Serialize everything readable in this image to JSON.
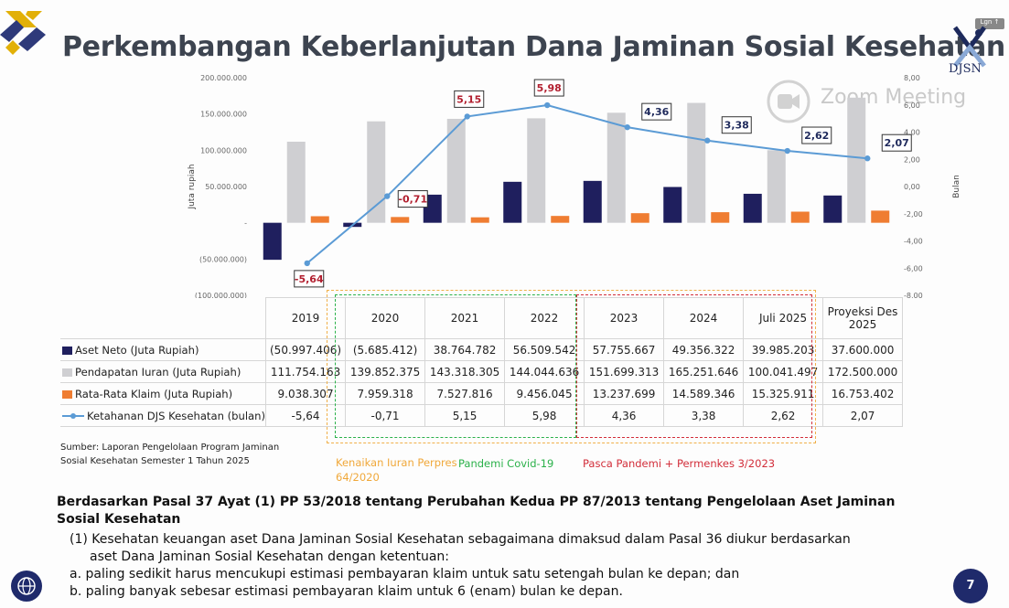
{
  "title": "Perkembangan Keberlanjutan Dana Jaminan Sosial Kesehatan",
  "logo_text": "DJSN",
  "watermark": "Zoom Meeting",
  "login_chip": "Lgn ↑",
  "colors": {
    "aset": "#1f1f5e",
    "iuran": "#cfcfd2",
    "klaim": "#ef7d32",
    "ketahanan": "#5b9bd5",
    "title": "#3d4450"
  },
  "chart_data": {
    "type": "bar",
    "categories": [
      "2019",
      "2020",
      "2021",
      "2022",
      "2023",
      "2024",
      "Juli 2025",
      "Proyeksi Des 2025"
    ],
    "category_lines": [
      [
        "2019"
      ],
      [
        "2020"
      ],
      [
        "2021"
      ],
      [
        "2022"
      ],
      [
        "2023"
      ],
      [
        "2024"
      ],
      [
        "Juli 2025"
      ],
      [
        "Proyeksi Des",
        "2025"
      ]
    ],
    "series": [
      {
        "name": "Aset Neto (Juta Rupiah)",
        "type": "bar",
        "axis": "left",
        "values": [
          -50997406,
          -5685412,
          38764782,
          56509542,
          57755667,
          49356322,
          39985203,
          37600000
        ],
        "labels": [
          "(50.997.406)",
          "(5.685.412)",
          "38.764.782",
          "56.509.542",
          "57.755.667",
          "49.356.322",
          "39.985.203",
          "37.600.000"
        ]
      },
      {
        "name": "Pendapatan Iuran (Juta Rupiah)",
        "type": "bar",
        "axis": "left",
        "values": [
          111754163,
          139852375,
          143318305,
          144044636,
          151699313,
          165251646,
          100041497,
          172500000
        ],
        "labels": [
          "111.754.163",
          "139.852.375",
          "143.318.305",
          "144.044.636",
          "151.699.313",
          "165.251.646",
          "100.041.497",
          "172.500.000"
        ]
      },
      {
        "name": "Rata-Rata Klaim (Juta Rupiah)",
        "type": "bar",
        "axis": "left",
        "values": [
          9038307,
          7959318,
          7527816,
          9456045,
          13237699,
          14589346,
          15325911,
          16753402
        ],
        "labels": [
          "9.038.307",
          "7.959.318",
          "7.527.816",
          "9.456.045",
          "13.237.699",
          "14.589.346",
          "15.325.911",
          "16.753.402"
        ]
      },
      {
        "name": "Ketahanan DJS Kesehatan (bulan)",
        "type": "line",
        "axis": "right",
        "values": [
          -5.64,
          -0.71,
          5.15,
          5.98,
          4.36,
          3.38,
          2.62,
          2.07
        ],
        "labels": [
          "-5,64",
          "-0,71",
          "5,15",
          "5,98",
          "4,36",
          "3,38",
          "2,62",
          "2,07"
        ]
      }
    ],
    "left_axis": {
      "label": "Juta rupiah",
      "ylim": [
        -100000000,
        200000000
      ],
      "ticks": [
        "200.000.000",
        "150.000.000",
        "100.000.000",
        "50.000.000",
        "-",
        "(50.000.000)",
        "(100.000.000)"
      ]
    },
    "right_axis": {
      "label": "Bulan",
      "ylim": [
        -8,
        8
      ],
      "ticks": [
        "8,00",
        "6,00",
        "4,00",
        "2,00",
        "0,00",
        "-2,00",
        "-4,00",
        "-6,00",
        "-8,00"
      ]
    }
  },
  "source": [
    "Sumber: Laporan Pengelolaan Program Jaminan",
    "Sosial Kesehatan Semester 1 Tahun 2025"
  ],
  "annotations": {
    "perpres": "Kenaikan Iuran Perpres 64/2020",
    "pandemi": "Pandemi Covid-19",
    "pasca": "Pasca Pandemi + Permenkes 3/2023"
  },
  "body": {
    "heading": "Berdasarkan Pasal 37 Ayat (1) PP 53/2018 tentang Perubahan Kedua PP 87/2013 tentang Pengelolaan Aset Jaminan Sosial Kesehatan",
    "point1_a": "(1)  Kesehatan keuangan aset Dana Jaminan Sosial Kesehatan sebagaimana dimaksud dalam Pasal 36 diukur  berdasarkan",
    "point1_b": "aset Dana Jaminan Sosial Kesehatan dengan ketentuan:",
    "item_a": "a. paling sedikit harus mencukupi estimasi pembayaran klaim untuk satu setengah bulan ke depan; dan",
    "item_b": "b. paling banyak sebesar estimasi pembayaran klaim untuk 6 (enam) bulan ke depan."
  },
  "page_number": "7"
}
